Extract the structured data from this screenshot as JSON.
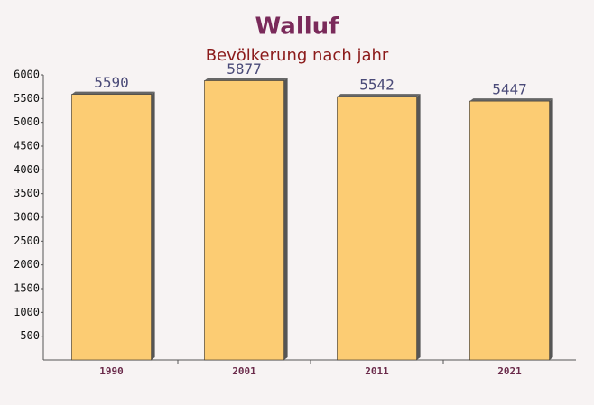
{
  "chart_data": {
    "type": "bar",
    "title": "Walluf",
    "subtitle": "Bevölkerung nach jahr",
    "categories": [
      "1990",
      "2001",
      "2011",
      "2021"
    ],
    "values": [
      5590,
      5877,
      5542,
      5447
    ],
    "color": "#fcc865",
    "ylim": [
      0,
      6000
    ],
    "yticks": [
      500,
      1000,
      1500,
      2000,
      2500,
      3000,
      3500,
      4000,
      4500,
      5000,
      5500,
      6000
    ],
    "grid": false
  }
}
